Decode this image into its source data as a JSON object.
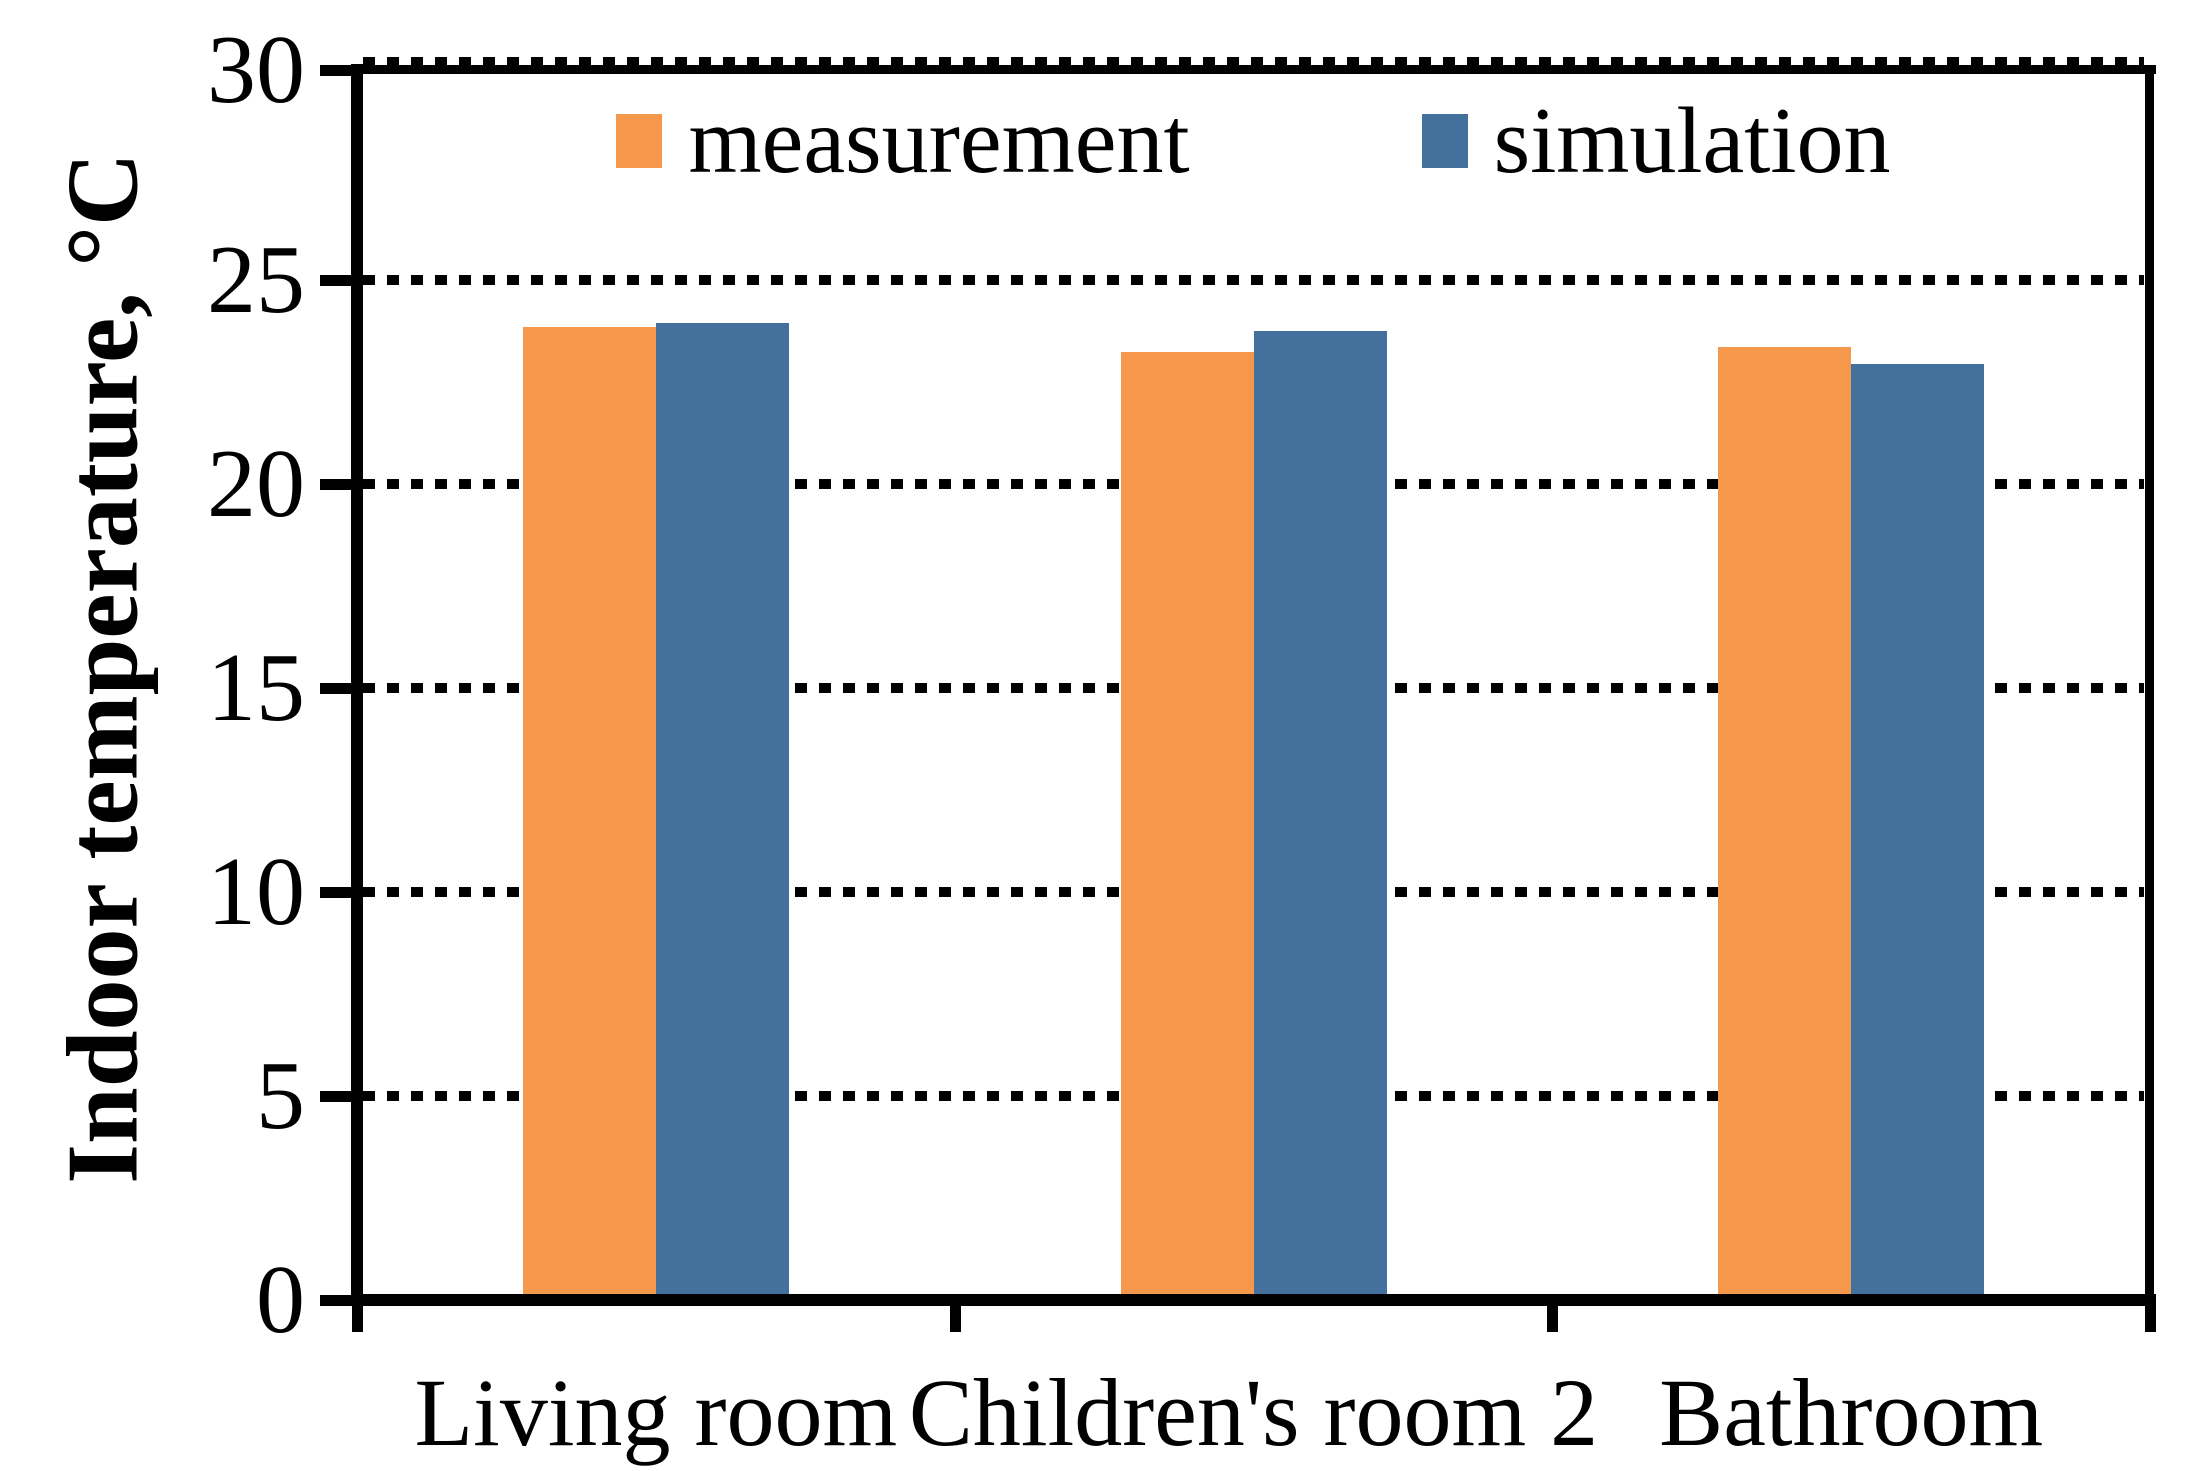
{
  "chart_data": {
    "type": "bar",
    "title": "",
    "ylabel": "Indoor temperature, °C",
    "xlabel": "",
    "ylim": [
      0,
      30
    ],
    "yticks": [
      0,
      5,
      10,
      15,
      20,
      25,
      30
    ],
    "grid": "horizontal dotted",
    "legend_position": "top-center",
    "categories": [
      "Living room",
      "Children's room 2",
      "Bathroom"
    ],
    "series": [
      {
        "name": "measurement",
        "color": "#F5984B",
        "values": [
          23.7,
          23.1,
          23.2
        ]
      },
      {
        "name": "simulation",
        "color": "#44709E",
        "values": [
          23.8,
          23.6,
          22.8
        ]
      }
    ],
    "axis_color": "#000000",
    "background_color": "#FFFFFF"
  }
}
